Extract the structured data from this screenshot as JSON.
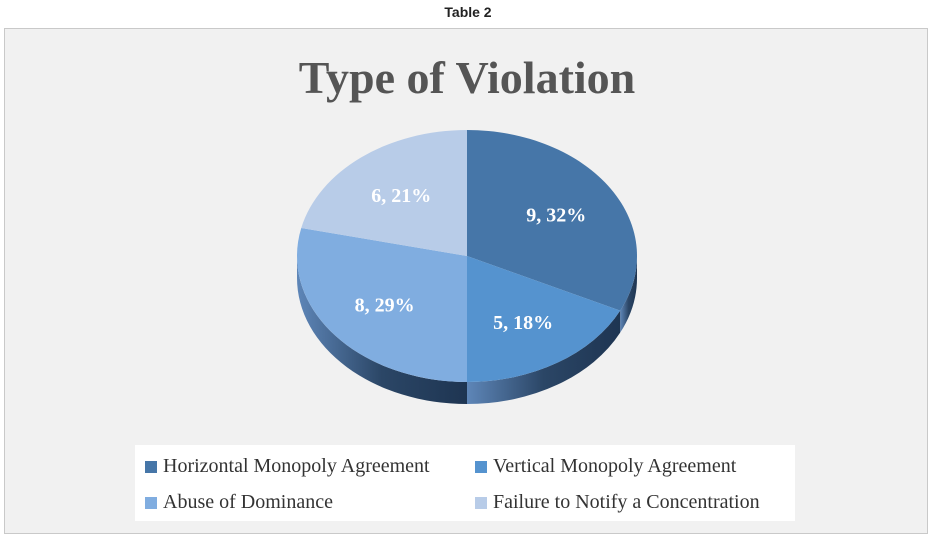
{
  "caption": "Table 2",
  "chart_data": {
    "type": "pie",
    "title": "Type of Violation",
    "slices": [
      {
        "name": "Horizontal Monopoly Agreement",
        "value": 9,
        "percent": "32%",
        "label": "9, 32%",
        "color": "#4676a8"
      },
      {
        "name": "Vertical Monopoly Agreement",
        "value": 5,
        "percent": "18%",
        "label": "5, 18%",
        "color": "#5593cf"
      },
      {
        "name": "Abuse of Dominance",
        "value": 8,
        "percent": "29%",
        "label": "8, 29%",
        "color": "#80ade0"
      },
      {
        "name": "Failure to Notify a Concentration",
        "value": 6,
        "percent": "21%",
        "label": "6, 21%",
        "color": "#b8cce8"
      }
    ],
    "legend_position": "bottom",
    "style": "3d"
  }
}
